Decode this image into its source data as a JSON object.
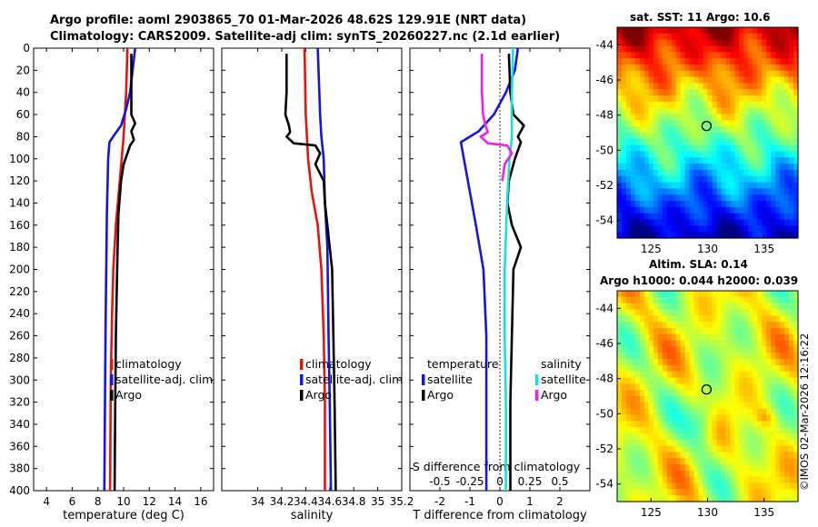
{
  "header": {
    "line1": "Argo profile: aoml 2903865_70 01-Mar-2026 48.62S 129.91E (NRT data)",
    "line2": "Climatology: CARS2009. Satellite-adj clim: synTS_20260227.nc (2.1d earlier)"
  },
  "colors": {
    "climatology": "#e8140c",
    "satellite": "#1414e6",
    "argo": "#000000",
    "sal_satellite": "#18e0e0",
    "sal_argo": "#f020f0"
  },
  "chart_data": [
    {
      "type": "line",
      "id": "temperature",
      "xlabel": "temperature (deg C)",
      "ylabel": "",
      "xlim": [
        3,
        17
      ],
      "ylim": [
        0,
        400
      ],
      "xticks": [
        "4",
        "6",
        "8",
        "10",
        "12",
        "14",
        "16"
      ],
      "xtick_values": [
        4,
        6,
        8,
        10,
        12,
        14,
        16
      ],
      "yticks": [
        "0",
        "20",
        "40",
        "60",
        "80",
        "100",
        "120",
        "140",
        "160",
        "180",
        "200",
        "220",
        "240",
        "260",
        "280",
        "300",
        "320",
        "340",
        "360",
        "380",
        "400"
      ],
      "ytick_values": [
        0,
        20,
        40,
        60,
        80,
        100,
        120,
        140,
        160,
        180,
        200,
        220,
        240,
        260,
        280,
        300,
        320,
        340,
        360,
        380,
        400
      ],
      "legend": [
        "climatology",
        "satellite-adj. clim",
        "Argo"
      ],
      "series": [
        {
          "name": "climatology",
          "color": "#e8140c",
          "points": [
            [
              10.3,
              0
            ],
            [
              10.2,
              40
            ],
            [
              10.0,
              80
            ],
            [
              9.7,
              120
            ],
            [
              9.4,
              160
            ],
            [
              9.2,
              200
            ],
            [
              9.1,
              240
            ],
            [
              9.0,
              300
            ],
            [
              8.95,
              400
            ]
          ]
        },
        {
          "name": "satellite-adj. clim",
          "color": "#1414e6",
          "points": [
            [
              10.9,
              0
            ],
            [
              10.7,
              20
            ],
            [
              10.5,
              40
            ],
            [
              10.2,
              55
            ],
            [
              9.8,
              70
            ],
            [
              9.3,
              78
            ],
            [
              8.9,
              85
            ],
            [
              8.8,
              100
            ],
            [
              8.7,
              150
            ],
            [
              8.6,
              250
            ],
            [
              8.55,
              320
            ],
            [
              8.5,
              400
            ]
          ]
        },
        {
          "name": "Argo",
          "color": "#000000",
          "points": [
            [
              10.6,
              5
            ],
            [
              10.6,
              30
            ],
            [
              10.6,
              60
            ],
            [
              10.9,
              68
            ],
            [
              10.6,
              75
            ],
            [
              10.8,
              83
            ],
            [
              10.5,
              88
            ],
            [
              10.3,
              95
            ],
            [
              10.0,
              105
            ],
            [
              9.8,
              120
            ],
            [
              9.6,
              150
            ],
            [
              9.5,
              200
            ],
            [
              9.4,
              260
            ],
            [
              9.35,
              320
            ],
            [
              9.3,
              400
            ]
          ]
        }
      ]
    },
    {
      "type": "line",
      "id": "salinity",
      "xlabel": "salinity",
      "ylabel": "",
      "xlim": [
        33.7,
        35.2
      ],
      "ylim": [
        0,
        400
      ],
      "xticks": [
        "34",
        "34.2",
        "34.4",
        "34.6",
        "34.8",
        "35",
        "35.2"
      ],
      "xtick_values": [
        34,
        34.2,
        34.4,
        34.6,
        34.8,
        35,
        35.2
      ],
      "legend": [
        "climatology",
        "satellite-adj. clim",
        "Argo"
      ],
      "series": [
        {
          "name": "climatology",
          "color": "#e8140c",
          "points": [
            [
              34.39,
              0
            ],
            [
              34.4,
              60
            ],
            [
              34.42,
              100
            ],
            [
              34.45,
              130
            ],
            [
              34.5,
              160
            ],
            [
              34.53,
              200
            ],
            [
              34.55,
              260
            ],
            [
              34.56,
              320
            ],
            [
              34.56,
              400
            ]
          ]
        },
        {
          "name": "satellite-adj. clim",
          "color": "#1414e6",
          "points": [
            [
              34.5,
              0
            ],
            [
              34.51,
              30
            ],
            [
              34.52,
              60
            ],
            [
              34.53,
              80
            ],
            [
              34.55,
              100
            ],
            [
              34.56,
              140
            ],
            [
              34.58,
              180
            ],
            [
              34.59,
              260
            ],
            [
              34.6,
              320
            ],
            [
              34.61,
              400
            ]
          ]
        },
        {
          "name": "Argo",
          "color": "#000000",
          "points": [
            [
              34.24,
              5
            ],
            [
              34.24,
              40
            ],
            [
              34.23,
              60
            ],
            [
              34.26,
              70
            ],
            [
              34.27,
              76
            ],
            [
              34.24,
              80
            ],
            [
              34.3,
              86
            ],
            [
              34.48,
              88
            ],
            [
              34.52,
              95
            ],
            [
              34.48,
              105
            ],
            [
              34.55,
              120
            ],
            [
              34.56,
              140
            ],
            [
              34.59,
              170
            ],
            [
              34.62,
              200
            ],
            [
              34.63,
              260
            ],
            [
              34.64,
              320
            ],
            [
              34.65,
              400
            ]
          ]
        }
      ]
    },
    {
      "type": "line",
      "id": "difference",
      "xlabel": "T difference from climatology",
      "xlabel2": "S difference from climatology",
      "xlim": [
        -3,
        3
      ],
      "ylim": [
        0,
        400
      ],
      "xticks": [
        "-2",
        "-1",
        "0",
        "1",
        "2"
      ],
      "xtick_values": [
        -2,
        -1,
        0,
        1,
        2
      ],
      "s_xticks": [
        "-0.5",
        "-0.25",
        "0",
        "0.25",
        "0.5"
      ],
      "s_xtick_values": [
        -0.5,
        -0.25,
        0,
        0.25,
        0.5
      ],
      "s_xlim": [
        -0.75,
        0.75
      ],
      "legend_temperature_title": "temperature",
      "legend_salinity_title": "salinity",
      "legend": [
        "satellite",
        "Argo",
        "satellite",
        "Argo"
      ],
      "series": [
        {
          "name": "T satellite",
          "color": "#1414e6",
          "points": [
            [
              0.6,
              0
            ],
            [
              0.5,
              20
            ],
            [
              0.2,
              40
            ],
            [
              -0.2,
              60
            ],
            [
              -0.7,
              75
            ],
            [
              -1.3,
              85
            ],
            [
              -1.2,
              100
            ],
            [
              -1.0,
              130
            ],
            [
              -0.8,
              160
            ],
            [
              -0.55,
              200
            ],
            [
              -0.45,
              260
            ],
            [
              -0.45,
              320
            ],
            [
              -0.45,
              400
            ]
          ]
        },
        {
          "name": "T Argo",
          "color": "#000000",
          "points": [
            [
              0.3,
              5
            ],
            [
              0.35,
              40
            ],
            [
              0.45,
              60
            ],
            [
              0.8,
              70
            ],
            [
              0.6,
              80
            ],
            [
              0.7,
              85
            ],
            [
              0.5,
              100
            ],
            [
              0.3,
              120
            ],
            [
              0.25,
              140
            ],
            [
              0.4,
              160
            ],
            [
              0.7,
              180
            ],
            [
              0.45,
              200
            ],
            [
              0.4,
              260
            ],
            [
              0.35,
              320
            ],
            [
              0.35,
              400
            ]
          ]
        },
        {
          "name": "S satellite",
          "color": "#18e0e0",
          "points": [
            [
              0.11,
              0
            ],
            [
              0.1,
              40
            ],
            [
              0.1,
              80
            ],
            [
              0.08,
              100
            ],
            [
              0.06,
              140
            ],
            [
              0.04,
              200
            ],
            [
              0.04,
              260
            ],
            [
              0.05,
              320
            ],
            [
              0.05,
              400
            ]
          ]
        },
        {
          "name": "S Argo",
          "color": "#f020f0",
          "points": [
            [
              -0.15,
              5
            ],
            [
              -0.15,
              40
            ],
            [
              -0.14,
              60
            ],
            [
              -0.12,
              70
            ],
            [
              -0.1,
              76
            ],
            [
              -0.16,
              80
            ],
            [
              -0.1,
              86
            ],
            [
              0.06,
              88
            ],
            [
              0.1,
              95
            ],
            [
              0.04,
              105
            ],
            [
              0.02,
              120
            ]
          ]
        }
      ]
    }
  ],
  "maps": {
    "sst": {
      "title": "sat. SST: 11 Argo: 10.6",
      "xticks": [
        "125",
        "130",
        "135"
      ],
      "yticks": [
        "-44",
        "-46",
        "-48",
        "-50",
        "-52",
        "-54"
      ],
      "lon_range": [
        122,
        138
      ],
      "lat_range": [
        -55,
        -43
      ],
      "argo_lon": 129.91,
      "argo_lat": -48.62
    },
    "sla": {
      "title_line1": "Altim. SLA: 0.14",
      "title_line2": "Argo h1000: 0.044 h2000: 0.039",
      "xticks": [
        "125",
        "130",
        "135"
      ],
      "yticks": [
        "-44",
        "-46",
        "-48",
        "-50",
        "-52",
        "-54"
      ],
      "lon_range": [
        122,
        138
      ],
      "lat_range": [
        -55,
        -43
      ],
      "argo_lon": 129.91,
      "argo_lat": -48.62
    }
  },
  "credit": "©IMOS 02-Mar-2026 12:16:22"
}
